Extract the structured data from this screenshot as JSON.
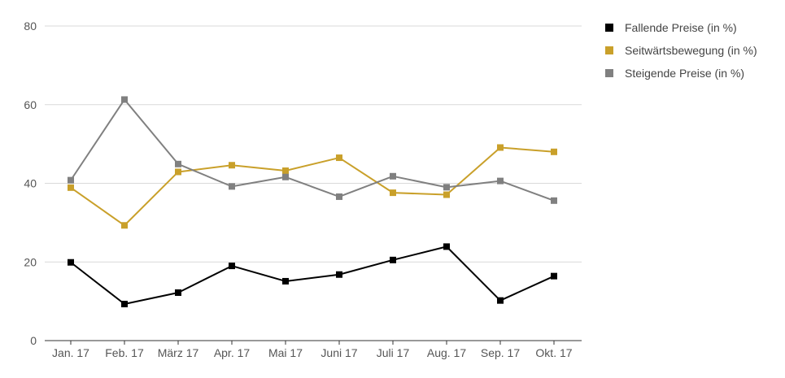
{
  "chart_data": {
    "type": "line",
    "categories": [
      "Jan. 17",
      "Feb. 17",
      "März 17",
      "Apr. 17",
      "Mai 17",
      "Juni 17",
      "Juli 17",
      "Aug. 17",
      "Sep. 17",
      "Okt. 17"
    ],
    "ylim": [
      0,
      80
    ],
    "yticks": [
      0,
      20,
      40,
      60,
      80
    ],
    "grid": true,
    "legend_position": "right",
    "series": [
      {
        "name": "Fallende Preise (in %)",
        "color": "#000000",
        "values": [
          19.9,
          9.3,
          12.2,
          19.0,
          15.1,
          16.8,
          20.5,
          23.9,
          10.2,
          16.4
        ]
      },
      {
        "name": "Seitwärtsbewegung (in %)",
        "color": "#c9a02a",
        "values": [
          38.9,
          29.3,
          42.9,
          44.6,
          43.2,
          46.5,
          37.6,
          37.1,
          49.1,
          48.0
        ]
      },
      {
        "name": "Steigende Preise (in %)",
        "color": "#808080",
        "values": [
          40.8,
          61.3,
          44.9,
          39.2,
          41.6,
          36.6,
          41.8,
          39.0,
          40.6,
          35.6
        ]
      }
    ]
  }
}
